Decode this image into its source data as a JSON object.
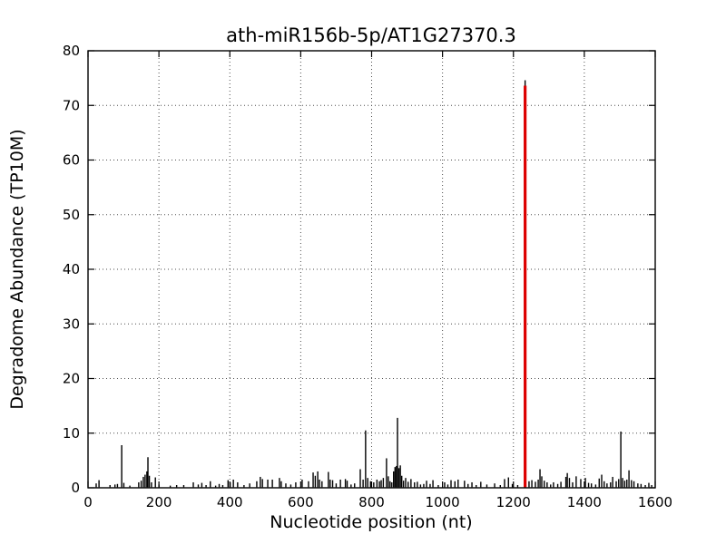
{
  "figure": {
    "title": "ath-miR156b-5p/AT1G27370.3",
    "xlabel": "Nucleotide position (nt)",
    "ylabel": "Degradome Abundance (TP10M)"
  },
  "chart_data": {
    "type": "bar",
    "subtype": "degradome-stem-plot",
    "title": "ath-miR156b-5p/AT1G27370.3",
    "xlabel": "Nucleotide position (nt)",
    "ylabel": "Degradome Abundance (TP10M)",
    "xlim": [
      0,
      1600
    ],
    "ylim": [
      0,
      80
    ],
    "xticks": [
      0,
      200,
      400,
      600,
      800,
      1000,
      1200,
      1400,
      1600
    ],
    "yticks": [
      0,
      10,
      20,
      30,
      40,
      50,
      60,
      70,
      80
    ],
    "grid": {
      "on": true,
      "style": "dotted",
      "color": "#4d4d4d"
    },
    "frame_color": "#000000",
    "background": "#ffffff",
    "highlight_color": "#dd0000",
    "bar_color": "#000000",
    "series": [
      {
        "name": "degradome-abundance",
        "color": "#000000",
        "width": 1.4,
        "points": [
          [
            23,
            0.8
          ],
          [
            31,
            1.4
          ],
          [
            62,
            0.5
          ],
          [
            76,
            0.6
          ],
          [
            83,
            0.7
          ],
          [
            95,
            7.8
          ],
          [
            101,
            0.9
          ],
          [
            118,
            0.4
          ],
          [
            143,
            1.0
          ],
          [
            150,
            1.3
          ],
          [
            156,
            2.0
          ],
          [
            161,
            2.4
          ],
          [
            166,
            3.0
          ],
          [
            169,
            5.6
          ],
          [
            173,
            2.2
          ],
          [
            179,
            1.0
          ],
          [
            190,
            1.9
          ],
          [
            200,
            0.6
          ],
          [
            232,
            0.4
          ],
          [
            250,
            0.5
          ],
          [
            270,
            0.5
          ],
          [
            297,
            1.0
          ],
          [
            311,
            0.6
          ],
          [
            321,
            0.9
          ],
          [
            333,
            0.5
          ],
          [
            345,
            1.2
          ],
          [
            360,
            0.4
          ],
          [
            370,
            0.7
          ],
          [
            380,
            0.5
          ],
          [
            395,
            1.4
          ],
          [
            401,
            1.0
          ],
          [
            410,
            1.5
          ],
          [
            422,
            1.0
          ],
          [
            440,
            0.5
          ],
          [
            456,
            0.8
          ],
          [
            476,
            1.2
          ],
          [
            486,
            2.0
          ],
          [
            492,
            1.6
          ],
          [
            507,
            1.5
          ],
          [
            520,
            1.5
          ],
          [
            540,
            1.8
          ],
          [
            545,
            1.2
          ],
          [
            558,
            0.8
          ],
          [
            572,
            0.6
          ],
          [
            586,
            1.0
          ],
          [
            604,
            1.5
          ],
          [
            622,
            1.2
          ],
          [
            635,
            2.8
          ],
          [
            641,
            2.2
          ],
          [
            648,
            3.0
          ],
          [
            653,
            1.5
          ],
          [
            660,
            1.2
          ],
          [
            678,
            2.9
          ],
          [
            683,
            1.5
          ],
          [
            690,
            1.4
          ],
          [
            700,
            0.8
          ],
          [
            712,
            1.5
          ],
          [
            726,
            1.6
          ],
          [
            731,
            1.3
          ],
          [
            742,
            0.6
          ],
          [
            752,
            0.8
          ],
          [
            768,
            3.4
          ],
          [
            776,
            1.5
          ],
          [
            783,
            10.5
          ],
          [
            789,
            1.8
          ],
          [
            797,
            1.2
          ],
          [
            806,
            1.0
          ],
          [
            815,
            1.5
          ],
          [
            822,
            1.2
          ],
          [
            827,
            1.4
          ],
          [
            833,
            1.8
          ],
          [
            842,
            5.4
          ],
          [
            847,
            2.1
          ],
          [
            852,
            1.2
          ],
          [
            857,
            1.0
          ],
          [
            862,
            3.0
          ],
          [
            866,
            3.8
          ],
          [
            870,
            4.0
          ],
          [
            873,
            12.8
          ],
          [
            877,
            3.6
          ],
          [
            881,
            4.1
          ],
          [
            885,
            2.2
          ],
          [
            890,
            1.3
          ],
          [
            896,
            1.8
          ],
          [
            903,
            1.1
          ],
          [
            911,
            1.6
          ],
          [
            921,
            1.0
          ],
          [
            929,
            1.1
          ],
          [
            938,
            0.6
          ],
          [
            947,
            0.7
          ],
          [
            955,
            1.3
          ],
          [
            965,
            0.7
          ],
          [
            973,
            1.4
          ],
          [
            988,
            0.5
          ],
          [
            1006,
            1.0
          ],
          [
            1015,
            0.6
          ],
          [
            1024,
            1.4
          ],
          [
            1035,
            1.2
          ],
          [
            1044,
            1.5
          ],
          [
            1062,
            1.3
          ],
          [
            1072,
            0.7
          ],
          [
            1083,
            1.0
          ],
          [
            1095,
            0.5
          ],
          [
            1108,
            1.1
          ],
          [
            1125,
            0.6
          ],
          [
            1147,
            0.8
          ],
          [
            1163,
            0.5
          ],
          [
            1175,
            1.6
          ],
          [
            1186,
            1.9
          ],
          [
            1197,
            0.7
          ],
          [
            1212,
            0.5
          ],
          [
            1233,
            74.6
          ],
          [
            1244,
            1.2
          ],
          [
            1252,
            1.4
          ],
          [
            1262,
            1.1
          ],
          [
            1270,
            1.5
          ],
          [
            1275,
            3.4
          ],
          [
            1280,
            2.1
          ],
          [
            1287,
            1.3
          ],
          [
            1295,
            1.0
          ],
          [
            1305,
            0.6
          ],
          [
            1313,
            1.0
          ],
          [
            1325,
            0.7
          ],
          [
            1334,
            1.1
          ],
          [
            1348,
            2.0
          ],
          [
            1352,
            2.7
          ],
          [
            1358,
            1.8
          ],
          [
            1367,
            1.0
          ],
          [
            1377,
            2.1
          ],
          [
            1390,
            1.6
          ],
          [
            1403,
            1.8
          ],
          [
            1412,
            0.9
          ],
          [
            1420,
            0.8
          ],
          [
            1432,
            0.6
          ],
          [
            1442,
            1.7
          ],
          [
            1449,
            2.4
          ],
          [
            1456,
            1.2
          ],
          [
            1464,
            0.8
          ],
          [
            1474,
            1.0
          ],
          [
            1480,
            2.0
          ],
          [
            1490,
            1.2
          ],
          [
            1497,
            1.6
          ],
          [
            1503,
            10.3
          ],
          [
            1508,
            1.8
          ],
          [
            1514,
            1.3
          ],
          [
            1520,
            1.5
          ],
          [
            1526,
            3.2
          ],
          [
            1533,
            1.4
          ],
          [
            1540,
            1.2
          ],
          [
            1551,
            0.8
          ],
          [
            1560,
            0.7
          ],
          [
            1572,
            0.5
          ],
          [
            1582,
            0.9
          ],
          [
            1590,
            0.5
          ]
        ]
      },
      {
        "name": "predicted-cleavage-site",
        "color": "#dd0000",
        "width": 3.2,
        "points": [
          [
            1233,
            73.6
          ]
        ]
      }
    ]
  }
}
